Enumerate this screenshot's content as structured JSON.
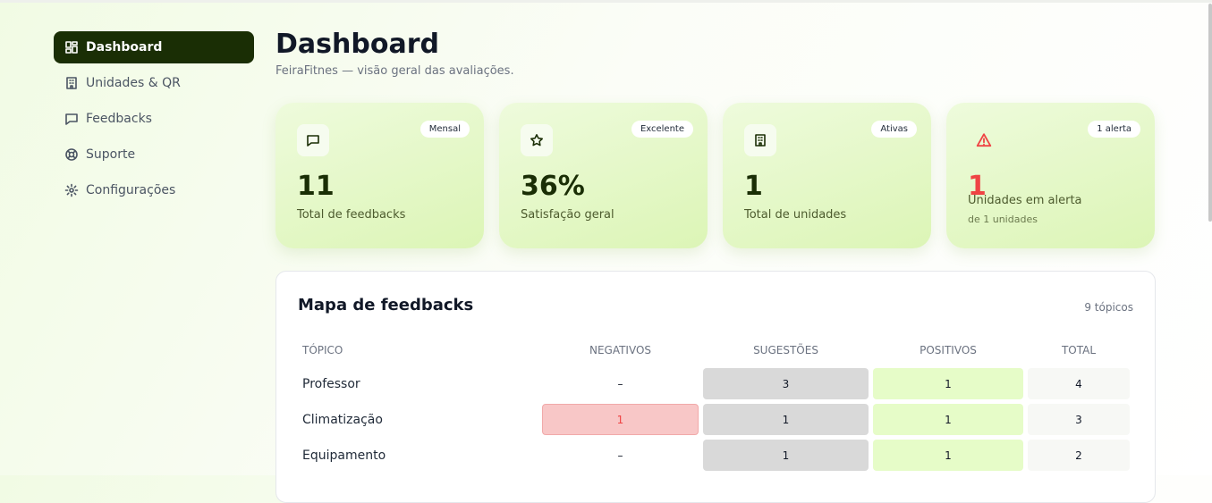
{
  "sidebar": {
    "items": [
      "Dashboard",
      "Unidades & QR",
      "Feedbacks",
      "Suporte",
      "Configurações"
    ]
  },
  "header": {
    "title": "Dashboard",
    "subtitle": "FeiraFitnes — visão geral das avaliações."
  },
  "cards": [
    {
      "badge": "Mensal",
      "value": 11,
      "label": "Total de feedbacks"
    },
    {
      "badge": "Excelente",
      "value": "36%",
      "label": "Satisfação geral"
    },
    {
      "badge": "Ativas",
      "value": 1,
      "label": "Total de unidades"
    },
    {
      "badge": "1 alerta",
      "value": 1,
      "label": "Unidades em alerta",
      "note": "de 1 unidades"
    }
  ],
  "table": {
    "title": "Mapa de feedbacks",
    "count": "9 tópicos",
    "columns": [
      "TÓPICO",
      "NEGATIVOS",
      "SUGESTÕES",
      "POSITIVOS",
      "TOTAL"
    ],
    "rows": [
      [
        "Professor",
        "–",
        3,
        1,
        4
      ],
      [
        "Climatização",
        1,
        1,
        1,
        3
      ],
      [
        "Equipamento",
        "–",
        1,
        1,
        2
      ]
    ]
  }
}
